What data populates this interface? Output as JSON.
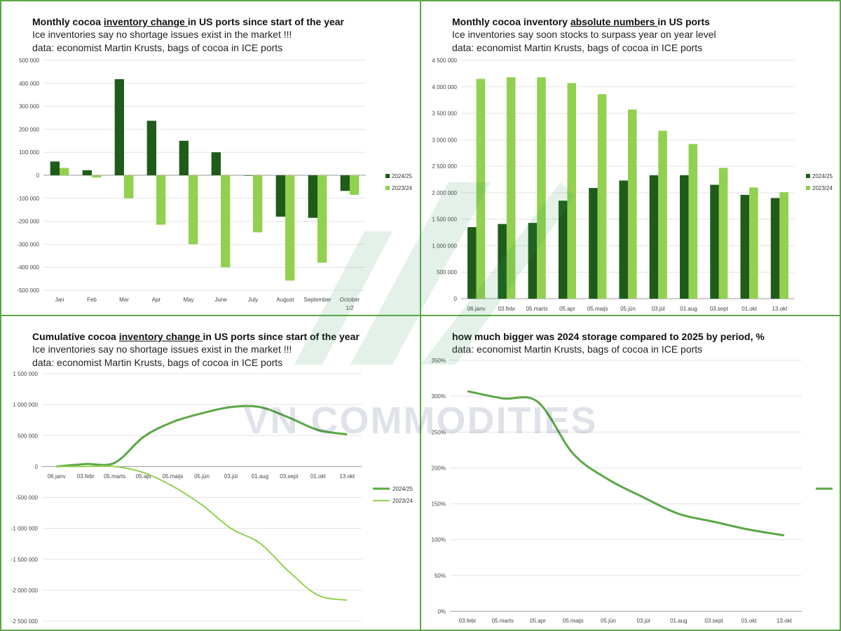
{
  "colors": {
    "dark": "#1f5c1a",
    "light": "#92d050",
    "mid": "#5aa845",
    "grid": "#e3e3e3",
    "axis": "#9a9a9a"
  },
  "watermark": {
    "text": "VN COMMODITIES"
  },
  "chart_data": [
    {
      "id": "p1",
      "type": "bar",
      "title": {
        "pre": "Monthly cocoa ",
        "u": "inventory change ",
        "post": "in US ports since start of the year"
      },
      "subtitles": [
        "Ice inventories say no shortage issues exist in the market !!!",
        "data: economist Martin Krusts, bags of cocoa in ICE ports"
      ],
      "categories": [
        "Jan",
        "Feb",
        "Mar",
        "Apr",
        "May",
        "June",
        "July",
        "August",
        "September",
        "October 1/2"
      ],
      "ylim": [
        -500000,
        500000
      ],
      "yticks": [
        -500000,
        -400000,
        -300000,
        -200000,
        -100000,
        0,
        100000,
        200000,
        300000,
        400000,
        500000
      ],
      "ytick_labels": [
        "-500 000",
        "-400 000",
        "-300 000",
        "-200 000",
        "-100 000",
        "0",
        "100 000",
        "200 000",
        "300 000",
        "400 000",
        "500 000"
      ],
      "series": [
        {
          "name": "2024/25",
          "color": "dark",
          "values": [
            60000,
            22000,
            418000,
            237000,
            150000,
            100000,
            -2000,
            -180000,
            -185000,
            -68000
          ]
        },
        {
          "name": "2023/24",
          "color": "light",
          "values": [
            32000,
            -10000,
            -100000,
            -215000,
            -300000,
            -400000,
            -248000,
            -458000,
            -380000,
            -85000
          ]
        }
      ],
      "legend": "right"
    },
    {
      "id": "p2",
      "type": "bar",
      "title": {
        "pre": "Monthly cocoa inventory ",
        "u": "absolute numbers ",
        "post": "in US ports"
      },
      "subtitles": [
        "Ice inventories say soon stocks to surpass year on year level",
        "data: economist Martin Krusts, bags of cocoa in ICE ports"
      ],
      "categories": [
        "06.janv",
        "03.febr",
        "05.marts",
        "05.apr",
        "05.maijs",
        "05.jūn",
        "03.jūl",
        "01.aug",
        "03.sept",
        "01.okt",
        "13.okt"
      ],
      "ylim": [
        0,
        4500000
      ],
      "yticks": [
        0,
        500000,
        1000000,
        1500000,
        2000000,
        2500000,
        3000000,
        3500000,
        4000000,
        4500000
      ],
      "ytick_labels": [
        "0",
        "500 000",
        "1 000 000",
        "1 500 000",
        "2 000 000",
        "2 500 000",
        "3 000 000",
        "3 500 000",
        "4 000 000",
        "4 500 000"
      ],
      "series": [
        {
          "name": "2024/25",
          "color": "dark",
          "values": [
            1350000,
            1410000,
            1430000,
            1850000,
            2090000,
            2230000,
            2330000,
            2330000,
            2150000,
            1960000,
            1900000
          ]
        },
        {
          "name": "2023/24",
          "color": "light",
          "values": [
            4150000,
            4180000,
            4180000,
            4070000,
            3860000,
            3570000,
            3170000,
            2920000,
            2470000,
            2100000,
            2010000
          ]
        }
      ],
      "legend": "right"
    },
    {
      "id": "p3",
      "type": "line",
      "title": {
        "pre": "Cumulative cocoa ",
        "u": "inventory change ",
        "post": "in US ports since start of the year"
      },
      "subtitles": [
        "Ice inventories say no shortage issues exist in the market !!!",
        "data: economist Martin Krusts, bags of cocoa in ICE ports"
      ],
      "categories": [
        "06.janv",
        "03.febr",
        "05.marts",
        "05.apr",
        "05.maijs",
        "05.jūn",
        "03.jūl",
        "01.aug",
        "03.sept",
        "01.okt",
        "13.okt"
      ],
      "ylim": [
        -2500000,
        1500000
      ],
      "yticks": [
        -2500000,
        -2000000,
        -1500000,
        -1000000,
        -500000,
        0,
        500000,
        1000000,
        1500000
      ],
      "ytick_labels": [
        "-2 500 000",
        "-2 000 000",
        "-1 500 000",
        "-1 000 000",
        "-500 000",
        "0",
        "500 000",
        "1 000 000",
        "1 500 000"
      ],
      "series": [
        {
          "name": "2024/25",
          "color": "mid",
          "width": 3,
          "values": [
            0,
            40000,
            60000,
            480000,
            720000,
            860000,
            960000,
            960000,
            790000,
            590000,
            520000
          ]
        },
        {
          "name": "2023/24",
          "color": "light",
          "width": 2,
          "values": [
            0,
            0,
            0,
            -100000,
            -320000,
            -620000,
            -1000000,
            -1240000,
            -1700000,
            -2080000,
            -2160000
          ]
        }
      ],
      "legend": "bottom-right"
    },
    {
      "id": "p4",
      "type": "line",
      "title": {
        "pre": "how much bigger was 2024 storage compared to 2025 by period, %",
        "u": "",
        "post": ""
      },
      "subtitles": [
        "data: economist Martin Krusts, bags of cocoa in ICE ports"
      ],
      "categories": [
        "03.febr",
        "05.marts",
        "05.apr",
        "05.maijs",
        "05.jūn",
        "03.jūl",
        "01.aug",
        "03.sept",
        "01.okt",
        "13.okt"
      ],
      "ylim": [
        0,
        350
      ],
      "yticks": [
        0,
        50,
        100,
        150,
        200,
        250,
        300,
        350
      ],
      "ytick_labels": [
        "0%",
        "50%",
        "100%",
        "150%",
        "200%",
        "250%",
        "300%",
        "350%"
      ],
      "series": [
        {
          "name": "",
          "color": "mid",
          "width": 3,
          "values": [
            307,
            297,
            292,
            220,
            184,
            159,
            136,
            125,
            114,
            106
          ]
        }
      ],
      "legend": "right"
    }
  ]
}
